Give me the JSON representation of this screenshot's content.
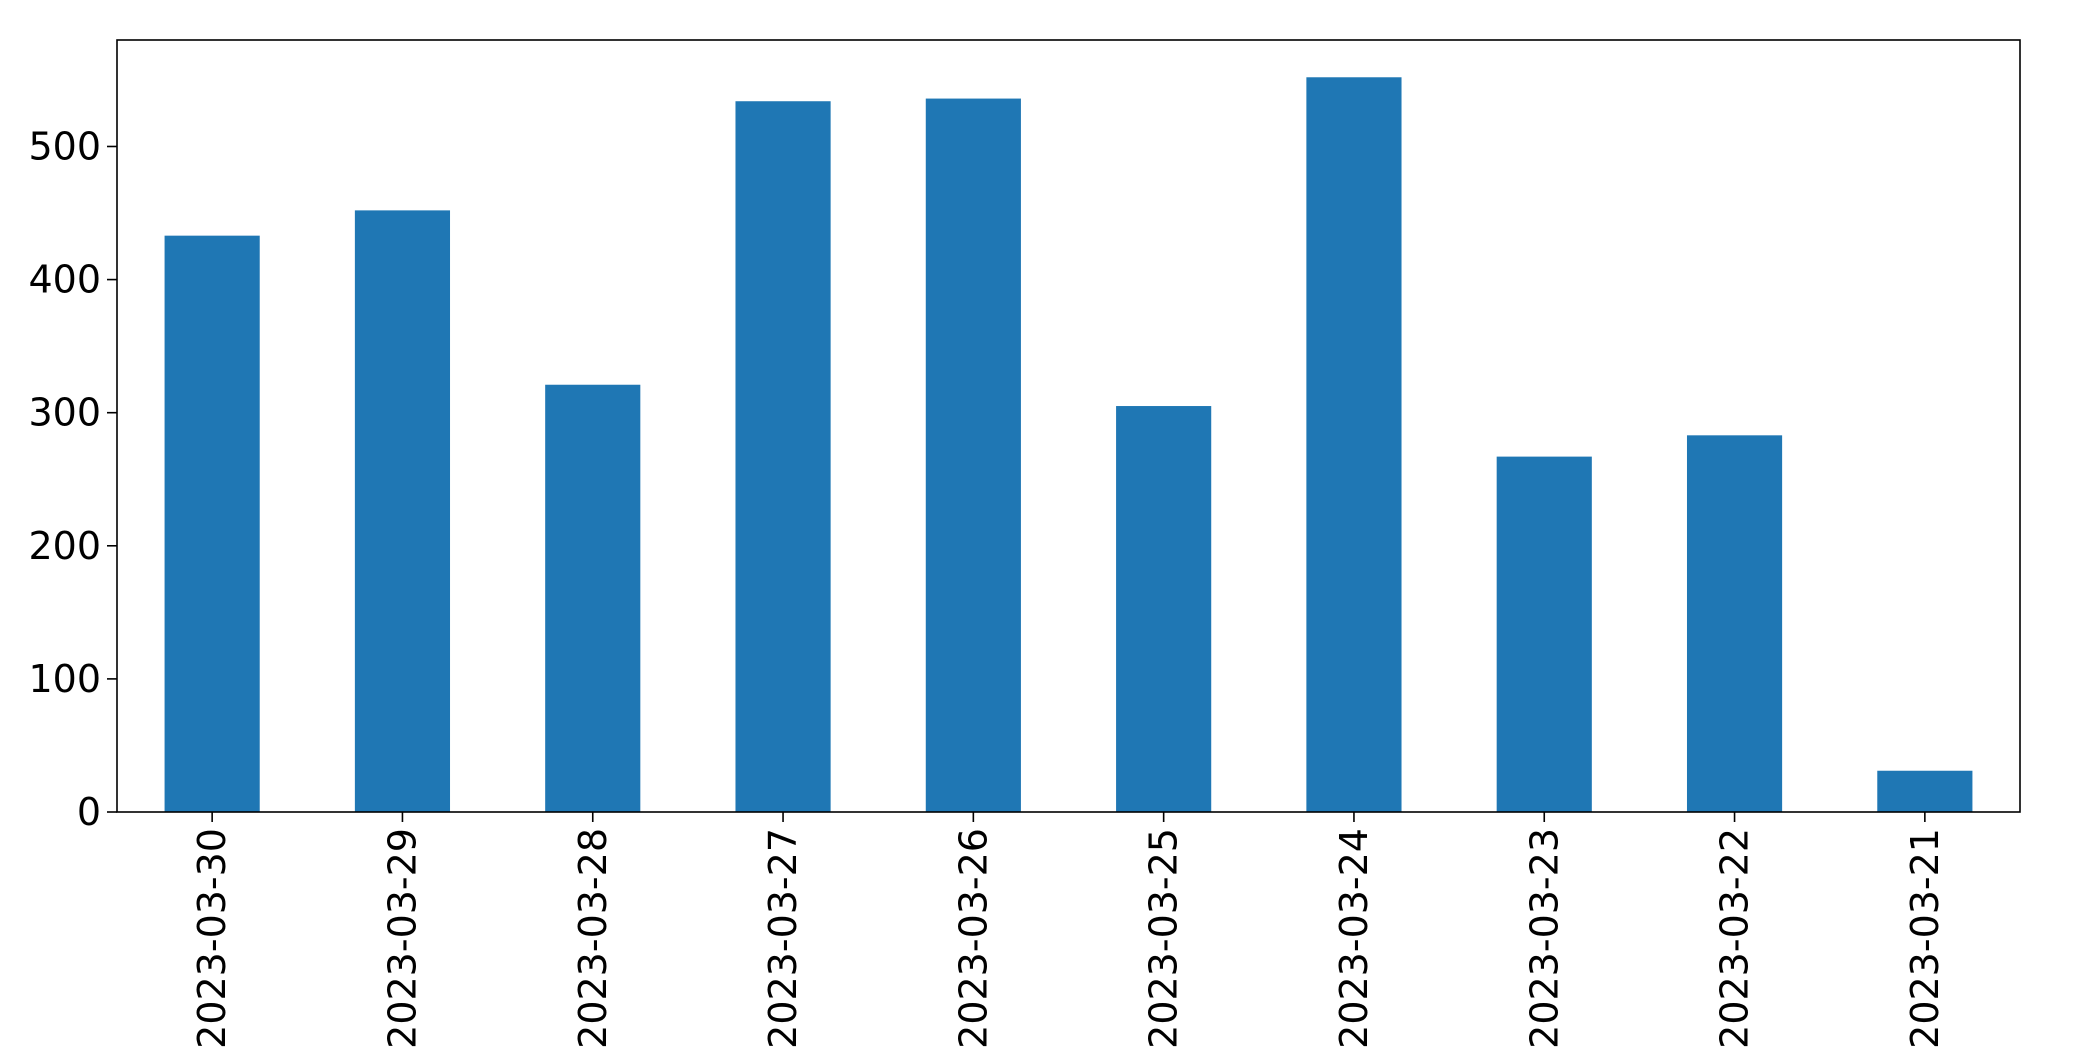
{
  "chart_data": {
    "type": "bar",
    "categories": [
      "2023-03-30",
      "2023-03-29",
      "2023-03-28",
      "2023-03-27",
      "2023-03-26",
      "2023-03-25",
      "2023-03-24",
      "2023-03-23",
      "2023-03-22",
      "2023-03-21"
    ],
    "values": [
      433,
      452,
      321,
      534,
      536,
      305,
      552,
      267,
      283,
      31
    ],
    "title": "",
    "xlabel": "",
    "ylabel": "",
    "ylim": [
      0,
      580
    ],
    "yticks": [
      0,
      100,
      200,
      300,
      400,
      500
    ],
    "grid": false,
    "bar_color": "#1f77b4"
  }
}
